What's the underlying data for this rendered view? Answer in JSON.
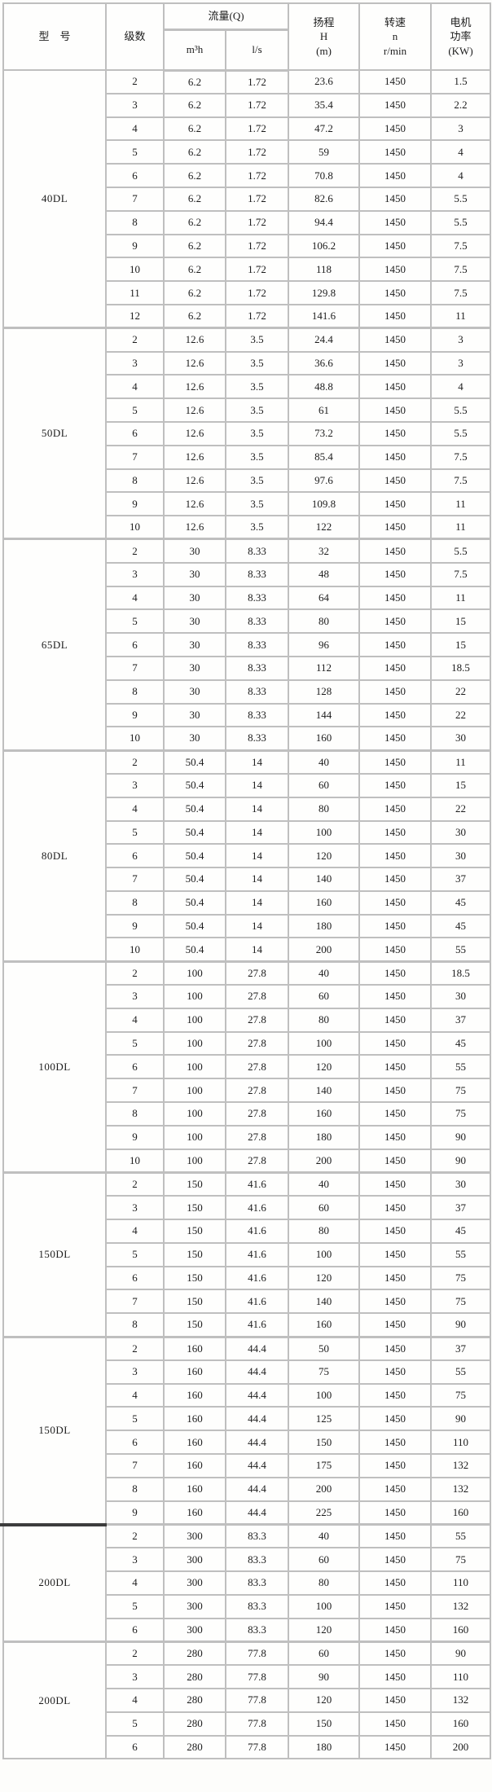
{
  "colors": {
    "border": "#bfbfbf",
    "text": "#1c1c1c",
    "divider": "#3d3d3d",
    "background": "#fdfdfb"
  },
  "chart_data": {
    "type": "table",
    "header": {
      "model": "型　号",
      "stages": "级数",
      "flow_group": "流量(Q)",
      "flow_m3h": "m³h",
      "flow_ls": "l/s",
      "head": "扬程\nH\n(m)",
      "speed": "转速\nn\nr/min",
      "power": "电机\n功率\n(KW)"
    },
    "column_keys": [
      "stage",
      "flow_m3h",
      "flow_ls",
      "head",
      "speed",
      "power"
    ],
    "groups": [
      {
        "model": "40DL",
        "rows": [
          [
            "2",
            "6.2",
            "1.72",
            "23.6",
            "1450",
            "1.5"
          ],
          [
            "3",
            "6.2",
            "1.72",
            "35.4",
            "1450",
            "2.2"
          ],
          [
            "4",
            "6.2",
            "1.72",
            "47.2",
            "1450",
            "3"
          ],
          [
            "5",
            "6.2",
            "1.72",
            "59",
            "1450",
            "4"
          ],
          [
            "6",
            "6.2",
            "1.72",
            "70.8",
            "1450",
            "4"
          ],
          [
            "7",
            "6.2",
            "1.72",
            "82.6",
            "1450",
            "5.5"
          ],
          [
            "8",
            "6.2",
            "1.72",
            "94.4",
            "1450",
            "5.5"
          ],
          [
            "9",
            "6.2",
            "1.72",
            "106.2",
            "1450",
            "7.5"
          ],
          [
            "10",
            "6.2",
            "1.72",
            "118",
            "1450",
            "7.5"
          ],
          [
            "11",
            "6.2",
            "1.72",
            "129.8",
            "1450",
            "7.5"
          ],
          [
            "12",
            "6.2",
            "1.72",
            "141.6",
            "1450",
            "11"
          ]
        ]
      },
      {
        "model": "50DL",
        "rows": [
          [
            "2",
            "12.6",
            "3.5",
            "24.4",
            "1450",
            "3"
          ],
          [
            "3",
            "12.6",
            "3.5",
            "36.6",
            "1450",
            "3"
          ],
          [
            "4",
            "12.6",
            "3.5",
            "48.8",
            "1450",
            "4"
          ],
          [
            "5",
            "12.6",
            "3.5",
            "61",
            "1450",
            "5.5"
          ],
          [
            "6",
            "12.6",
            "3.5",
            "73.2",
            "1450",
            "5.5"
          ],
          [
            "7",
            "12.6",
            "3.5",
            "85.4",
            "1450",
            "7.5"
          ],
          [
            "8",
            "12.6",
            "3.5",
            "97.6",
            "1450",
            "7.5"
          ],
          [
            "9",
            "12.6",
            "3.5",
            "109.8",
            "1450",
            "11"
          ],
          [
            "10",
            "12.6",
            "3.5",
            "122",
            "1450",
            "11"
          ]
        ]
      },
      {
        "model": "65DL",
        "rows": [
          [
            "2",
            "30",
            "8.33",
            "32",
            "1450",
            "5.5"
          ],
          [
            "3",
            "30",
            "8.33",
            "48",
            "1450",
            "7.5"
          ],
          [
            "4",
            "30",
            "8.33",
            "64",
            "1450",
            "11"
          ],
          [
            "5",
            "30",
            "8.33",
            "80",
            "1450",
            "15"
          ],
          [
            "6",
            "30",
            "8.33",
            "96",
            "1450",
            "15"
          ],
          [
            "7",
            "30",
            "8.33",
            "112",
            "1450",
            "18.5"
          ],
          [
            "8",
            "30",
            "8.33",
            "128",
            "1450",
            "22"
          ],
          [
            "9",
            "30",
            "8.33",
            "144",
            "1450",
            "22"
          ],
          [
            "10",
            "30",
            "8.33",
            "160",
            "1450",
            "30"
          ]
        ]
      },
      {
        "model": "80DL",
        "rows": [
          [
            "2",
            "50.4",
            "14",
            "40",
            "1450",
            "11"
          ],
          [
            "3",
            "50.4",
            "14",
            "60",
            "1450",
            "15"
          ],
          [
            "4",
            "50.4",
            "14",
            "80",
            "1450",
            "22"
          ],
          [
            "5",
            "50.4",
            "14",
            "100",
            "1450",
            "30"
          ],
          [
            "6",
            "50.4",
            "14",
            "120",
            "1450",
            "30"
          ],
          [
            "7",
            "50.4",
            "14",
            "140",
            "1450",
            "37"
          ],
          [
            "8",
            "50.4",
            "14",
            "160",
            "1450",
            "45"
          ],
          [
            "9",
            "50.4",
            "14",
            "180",
            "1450",
            "45"
          ],
          [
            "10",
            "50.4",
            "14",
            "200",
            "1450",
            "55"
          ]
        ]
      },
      {
        "model": "100DL",
        "rows": [
          [
            "2",
            "100",
            "27.8",
            "40",
            "1450",
            "18.5"
          ],
          [
            "3",
            "100",
            "27.8",
            "60",
            "1450",
            "30"
          ],
          [
            "4",
            "100",
            "27.8",
            "80",
            "1450",
            "37"
          ],
          [
            "5",
            "100",
            "27.8",
            "100",
            "1450",
            "45"
          ],
          [
            "6",
            "100",
            "27.8",
            "120",
            "1450",
            "55"
          ],
          [
            "7",
            "100",
            "27.8",
            "140",
            "1450",
            "75"
          ],
          [
            "8",
            "100",
            "27.8",
            "160",
            "1450",
            "75"
          ],
          [
            "9",
            "100",
            "27.8",
            "180",
            "1450",
            "90"
          ],
          [
            "10",
            "100",
            "27.8",
            "200",
            "1450",
            "90"
          ]
        ]
      },
      {
        "model": "150DL",
        "rows": [
          [
            "2",
            "150",
            "41.6",
            "40",
            "1450",
            "30"
          ],
          [
            "3",
            "150",
            "41.6",
            "60",
            "1450",
            "37"
          ],
          [
            "4",
            "150",
            "41.6",
            "80",
            "1450",
            "45"
          ],
          [
            "5",
            "150",
            "41.6",
            "100",
            "1450",
            "55"
          ],
          [
            "6",
            "150",
            "41.6",
            "120",
            "1450",
            "75"
          ],
          [
            "7",
            "150",
            "41.6",
            "140",
            "1450",
            "75"
          ],
          [
            "8",
            "150",
            "41.6",
            "160",
            "1450",
            "90"
          ]
        ]
      },
      {
        "model": "150DL",
        "rows": [
          [
            "2",
            "160",
            "44.4",
            "50",
            "1450",
            "37"
          ],
          [
            "3",
            "160",
            "44.4",
            "75",
            "1450",
            "55"
          ],
          [
            "4",
            "160",
            "44.4",
            "100",
            "1450",
            "75"
          ],
          [
            "5",
            "160",
            "44.4",
            "125",
            "1450",
            "90"
          ],
          [
            "6",
            "160",
            "44.4",
            "150",
            "1450",
            "110"
          ],
          [
            "7",
            "160",
            "44.4",
            "175",
            "1450",
            "132"
          ],
          [
            "8",
            "160",
            "44.4",
            "200",
            "1450",
            "132"
          ],
          [
            "9",
            "160",
            "44.4",
            "225",
            "1450",
            "160"
          ]
        ]
      },
      {
        "model": "200DL",
        "rows": [
          [
            "2",
            "300",
            "83.3",
            "40",
            "1450",
            "55"
          ],
          [
            "3",
            "300",
            "83.3",
            "60",
            "1450",
            "75"
          ],
          [
            "4",
            "300",
            "83.3",
            "80",
            "1450",
            "110"
          ],
          [
            "5",
            "300",
            "83.3",
            "100",
            "1450",
            "132"
          ],
          [
            "6",
            "300",
            "83.3",
            "120",
            "1450",
            "160"
          ]
        ]
      },
      {
        "model": "200DL",
        "rows": [
          [
            "2",
            "280",
            "77.8",
            "60",
            "1450",
            "90"
          ],
          [
            "3",
            "280",
            "77.8",
            "90",
            "1450",
            "110"
          ],
          [
            "4",
            "280",
            "77.8",
            "120",
            "1450",
            "132"
          ],
          [
            "5",
            "280",
            "77.8",
            "150",
            "1450",
            "160"
          ],
          [
            "6",
            "280",
            "77.8",
            "180",
            "1450",
            "200"
          ]
        ]
      }
    ]
  }
}
